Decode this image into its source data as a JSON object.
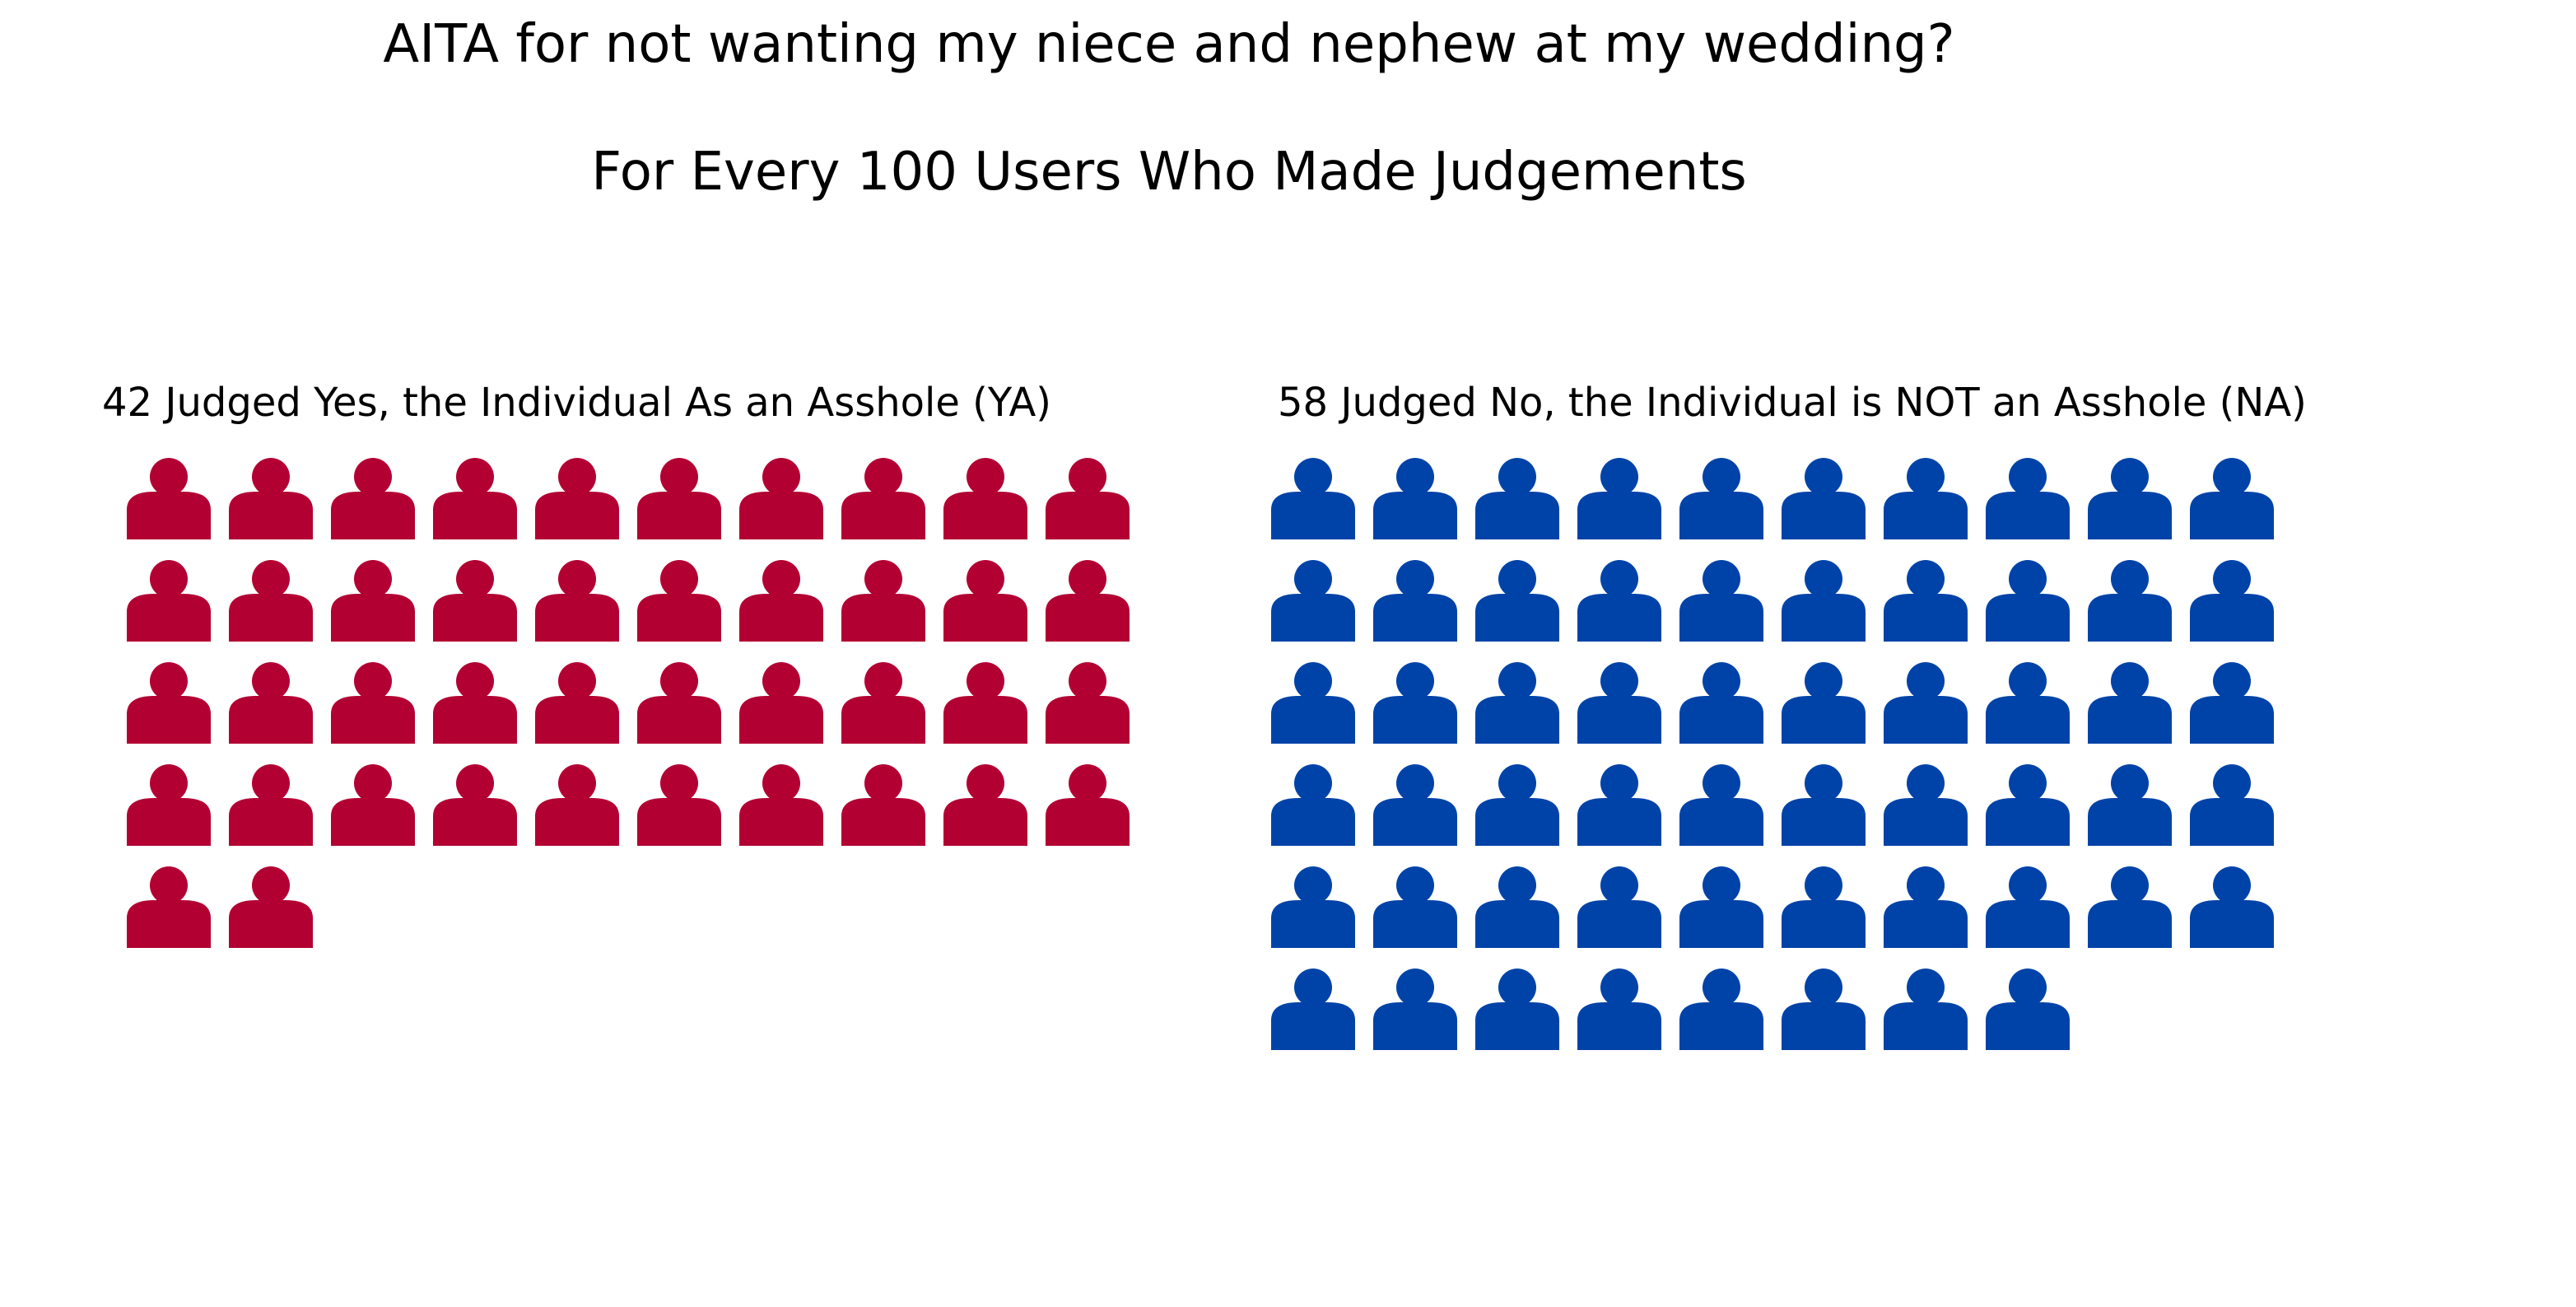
{
  "chart_data": {
    "type": "waffle",
    "title": "AITA for not wanting my niece and nephew at my wedding?",
    "subtitle": "For Every 100 Users Who Made Judgements",
    "icon": "person-icon",
    "columns_per_row": 10,
    "groups": [
      {
        "label": "42 Judged Yes, the Individual As an Asshole (YA)",
        "count": 42,
        "color": "#b30033"
      },
      {
        "label": "58 Judged No, the Individual is NOT an Asshole (NA)",
        "count": 58,
        "color": "#0043a8"
      }
    ]
  }
}
